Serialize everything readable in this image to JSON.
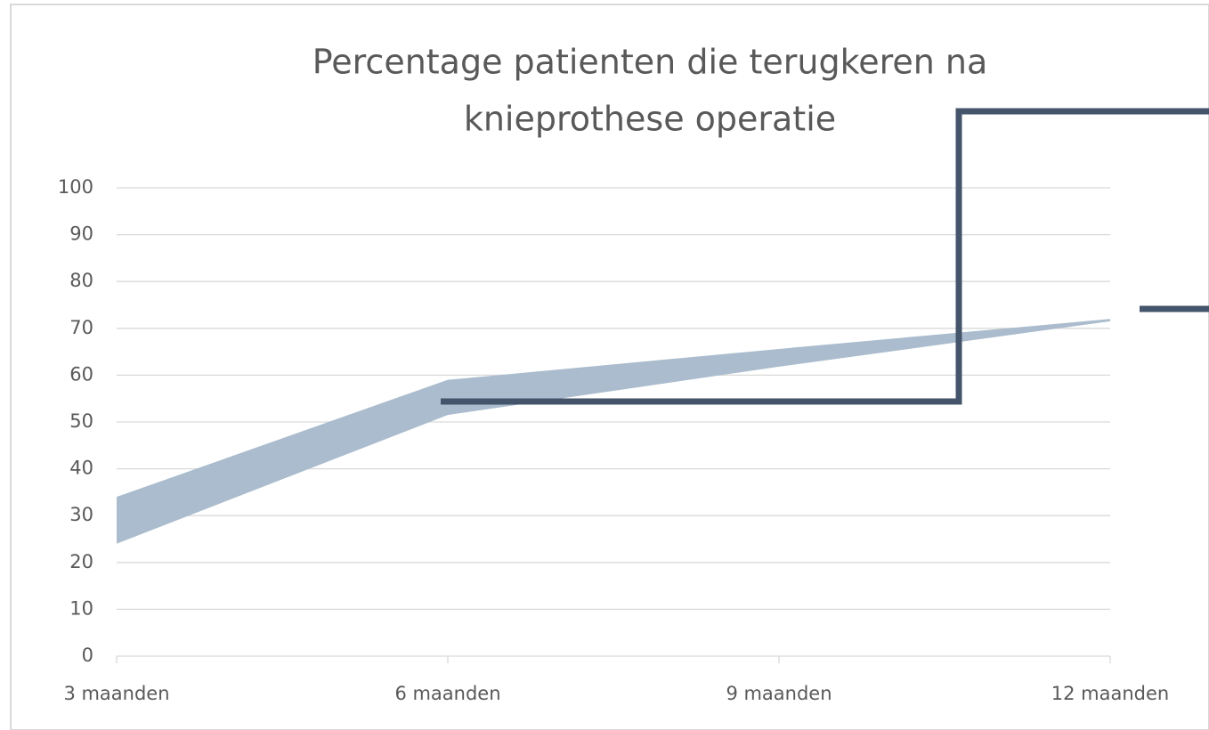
{
  "chart_data": {
    "type": "area",
    "title": [
      "Percentage patienten die terugkeren  na",
      "knieprothese operatie"
    ],
    "categories": [
      "3 maanden",
      "6 maanden",
      "9 maanden",
      "12 maanden"
    ],
    "series": [
      {
        "color": "#aabccd",
        "values": [
          24,
          51.5,
          61.8,
          71.5
        ]
      },
      {
        "color": "#aabccd",
        "values": [
          34,
          59,
          65.6,
          72
        ]
      }
    ],
    "ylim": [
      0,
      100
    ],
    "yticks": [
      0,
      10,
      20,
      30,
      40,
      50,
      60,
      70,
      80,
      90,
      100
    ],
    "grid": true
  }
}
